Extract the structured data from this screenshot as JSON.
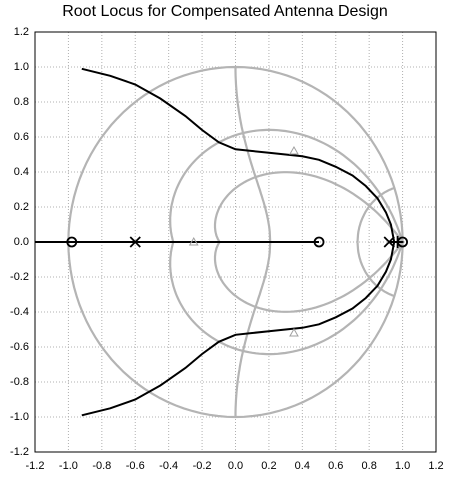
{
  "chart_data": {
    "type": "rootlocus",
    "title": "Root Locus for Compensated Antenna Design",
    "xlim": [
      -1.2,
      1.2
    ],
    "ylim": [
      -1.2,
      1.2
    ],
    "xticks": [
      -1.2,
      {
        "value": -1,
        "label": "-1.0"
      },
      -0.8,
      -0.6,
      -0.4,
      -0.2,
      {
        "value": 0,
        "label": "0.0"
      },
      0.2,
      0.4,
      0.6,
      0.8,
      {
        "value": 1,
        "label": "1.0"
      },
      1.2
    ],
    "yticks": [
      -1.2,
      {
        "value": -1,
        "label": "-1.0"
      },
      -0.8,
      -0.6,
      -0.4,
      -0.2,
      {
        "value": 0,
        "label": "0.0"
      },
      0.2,
      0.4,
      0.6,
      0.8,
      {
        "value": 1,
        "label": "1.0"
      },
      1.2
    ],
    "grid": true,
    "zgrid": true,
    "series": [
      {
        "color": "#000000",
        "x": [
          0.95,
          0.93,
          0.9,
          0.85,
          0.78,
          0.7,
          0.6,
          0.5,
          0.4,
          0.3,
          0.2,
          0.1,
          0.0,
          -0.1,
          -0.2,
          -0.3,
          -0.45,
          -0.6,
          -0.75,
          -0.92
        ],
        "values": [
          0.0,
          0.1,
          0.17,
          0.25,
          0.32,
          0.38,
          0.43,
          0.47,
          0.49,
          0.5,
          0.51,
          0.52,
          0.53,
          0.57,
          0.64,
          0.72,
          0.82,
          0.9,
          0.95,
          0.99
        ]
      },
      {
        "color": "#000000",
        "x": [
          0.95,
          0.93,
          0.9,
          0.85,
          0.78,
          0.7,
          0.6,
          0.5,
          0.4,
          0.3,
          0.2,
          0.1,
          0.0,
          -0.1,
          -0.2,
          -0.3,
          -0.45,
          -0.6,
          -0.75,
          -0.92
        ],
        "values": [
          0.0,
          -0.1,
          -0.17,
          -0.25,
          -0.32,
          -0.38,
          -0.43,
          -0.47,
          -0.49,
          -0.5,
          -0.51,
          -0.52,
          -0.53,
          -0.57,
          -0.64,
          -0.72,
          -0.82,
          -0.9,
          -0.95,
          -0.99
        ]
      },
      {
        "color": "#000000",
        "x": [
          -1.2,
          0.5
        ],
        "values": [
          0,
          0
        ]
      },
      {
        "color": "#000000",
        "x": [
          0.92,
          1.0
        ],
        "values": [
          0,
          0
        ]
      }
    ],
    "markers": [
      {
        "shape": "x",
        "color": "#000000",
        "x": [
          -0.6,
          0.92
        ],
        "values": [
          0,
          0
        ]
      },
      {
        "shape": "+",
        "color": "#000000",
        "x": [
          0.97
        ],
        "values": [
          0
        ]
      },
      {
        "shape": "o",
        "color": "#000000",
        "x": [
          -0.98,
          0.5,
          1.0
        ],
        "values": [
          0,
          0,
          0
        ]
      },
      {
        "shape": "triangle",
        "color": "#a0a0a0",
        "x": [
          -0.25,
          0.35,
          0.35
        ],
        "values": [
          0,
          0.52,
          -0.52
        ]
      }
    ]
  }
}
